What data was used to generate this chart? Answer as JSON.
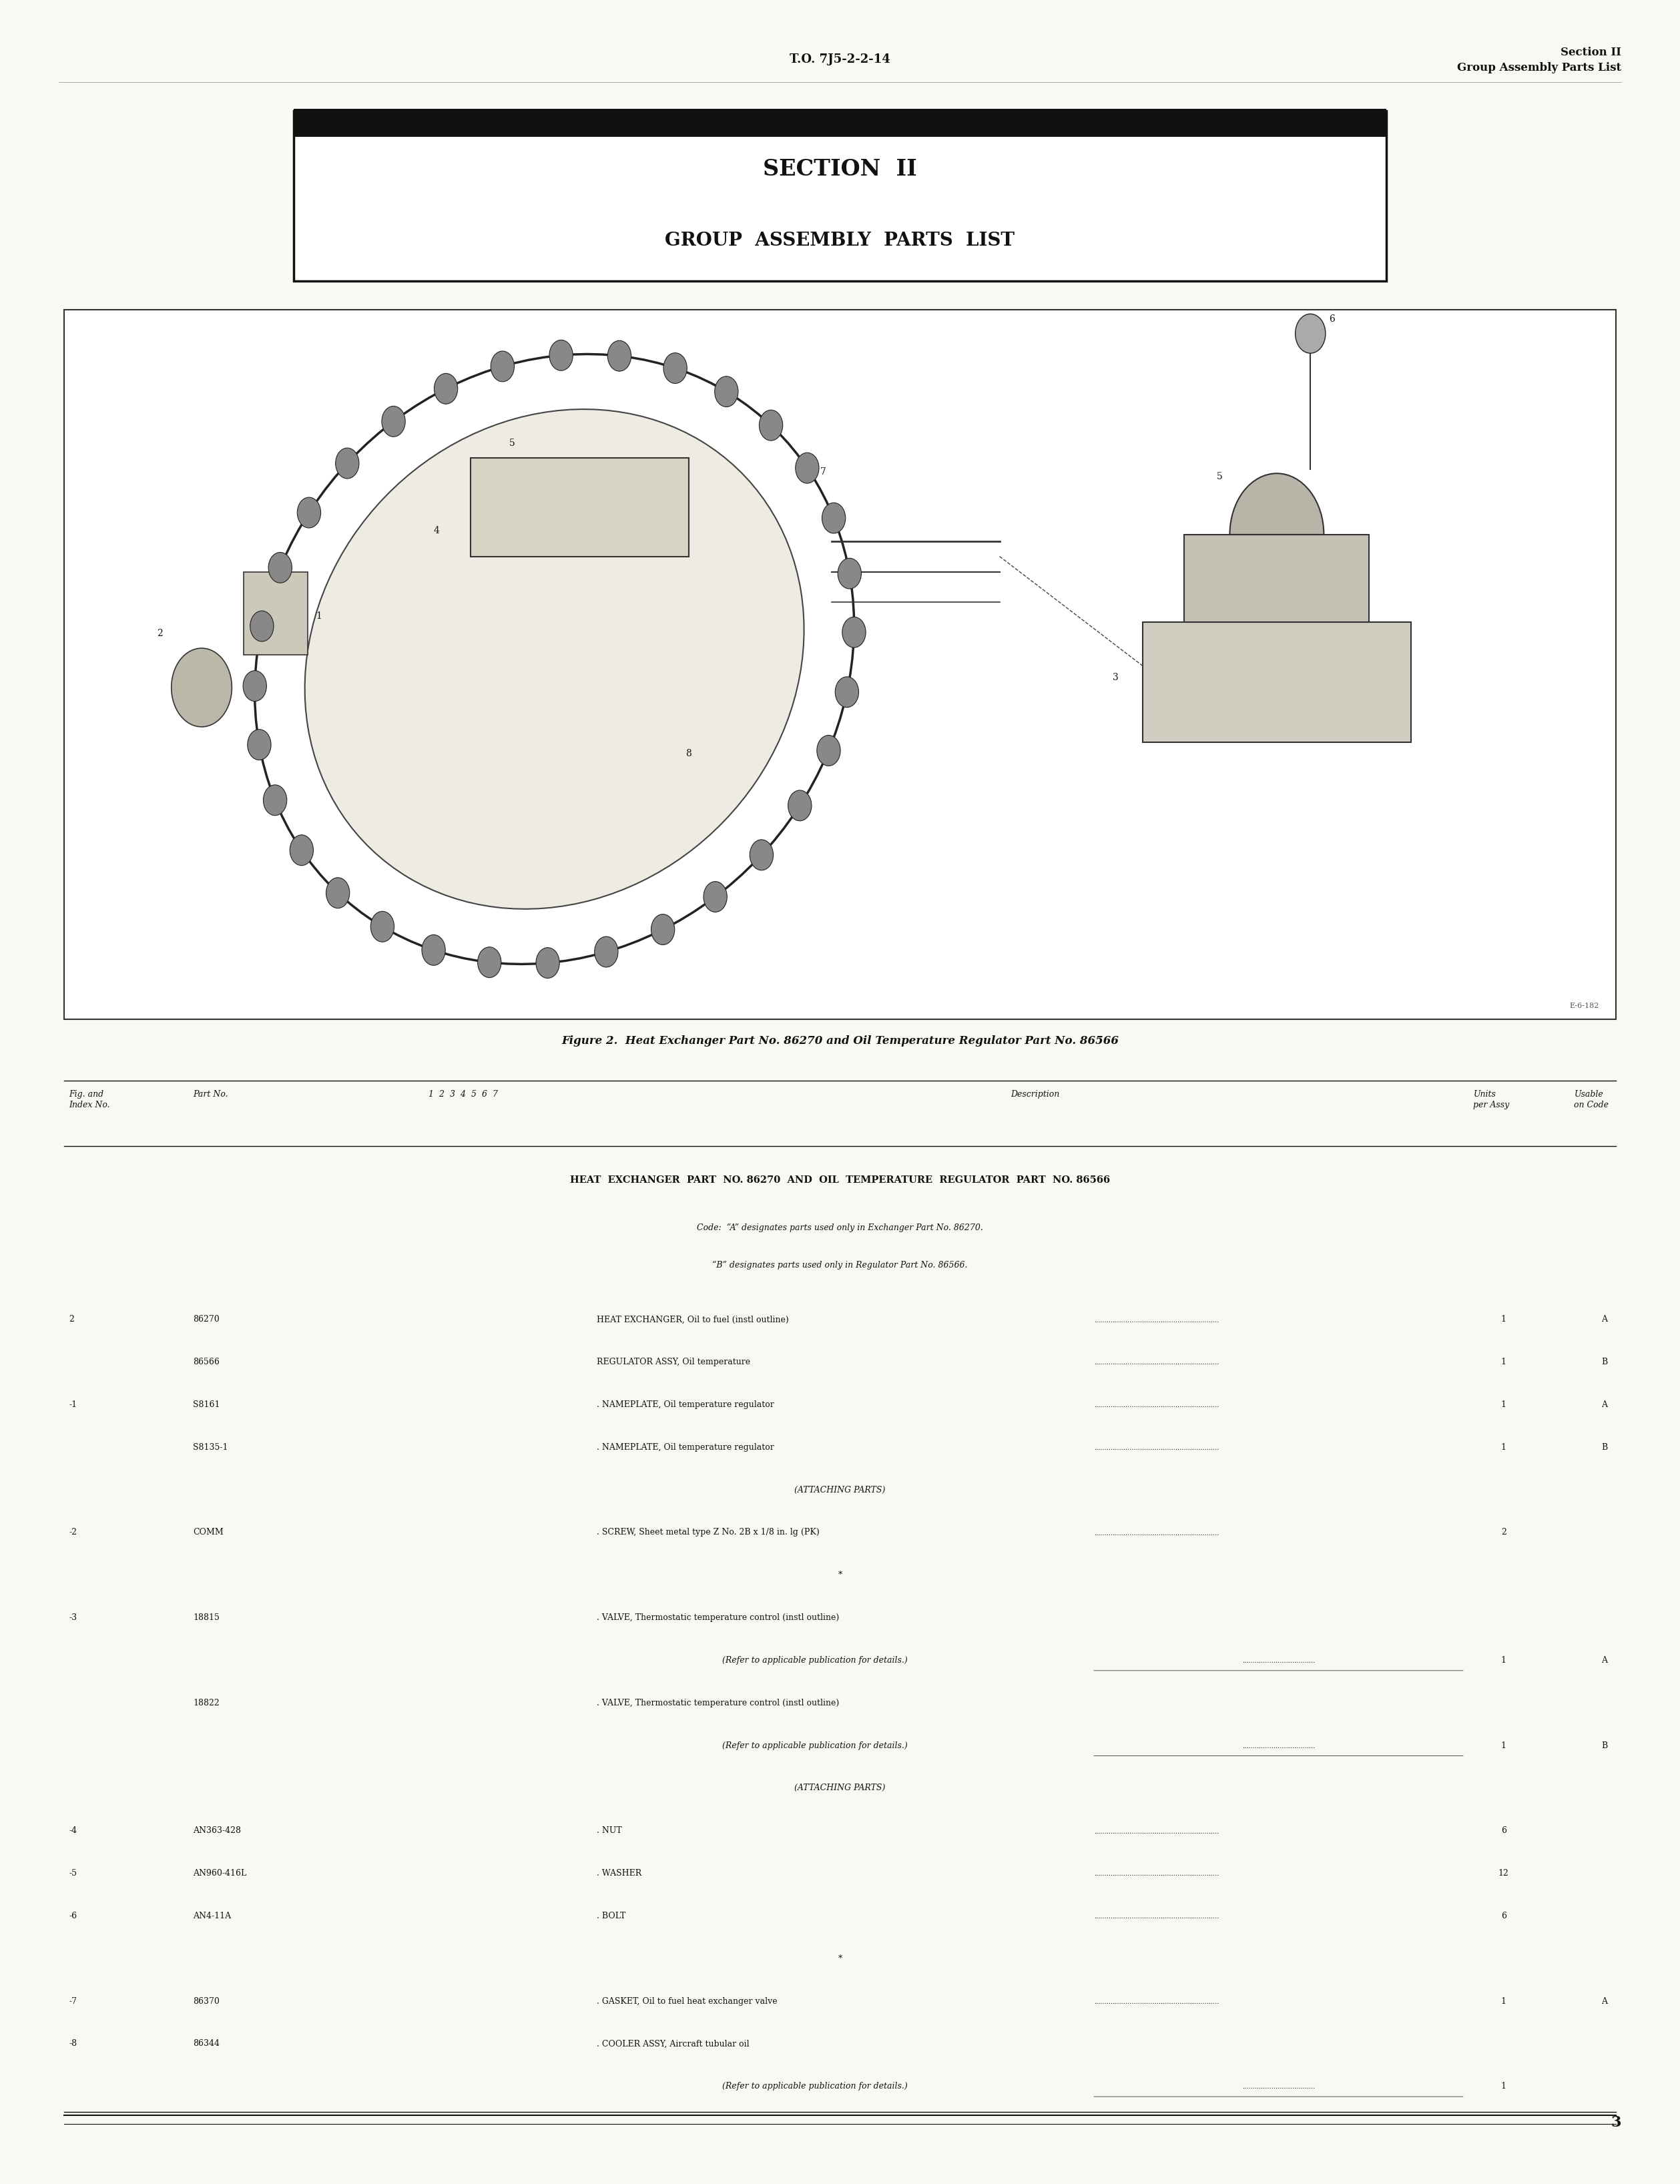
{
  "page_bg": "#faf8f2",
  "header_to": "T.O. 7J5-2-2-14",
  "header_section": "Section II",
  "header_subsection": "Group Assembly Parts List",
  "section_box_title1": "SECTION  II",
  "section_box_title2": "GROUP  ASSEMBLY  PARTS  LIST",
  "figure_caption": "Figure 2.  Heat Exchanger Part No. 86270 and Oil Temperature Regulator Part No. 86566",
  "table_main_title": "HEAT  EXCHANGER  PART  NO. 86270  AND  OIL  TEMPERATURE  REGULATOR  PART  NO. 86566",
  "table_code_note1": "Code:  “A” designates parts used only in Exchanger Part No. 86270.",
  "table_code_note2": "“B” designates parts used only in Regulator Part No. 86566.",
  "table_rows": [
    {
      "index": "2",
      "part": "86270",
      "description": "HEAT EXCHANGER, Oil to fuel (instl outline)",
      "dots": true,
      "units": "1",
      "code": "A",
      "indent": 0,
      "italic": false
    },
    {
      "index": "",
      "part": "86566",
      "description": "REGULATOR ASSY, Oil temperature",
      "dots": true,
      "units": "1",
      "code": "B",
      "indent": 0,
      "italic": false
    },
    {
      "index": "-1",
      "part": "S8161",
      "description": ". NAMEPLATE, Oil temperature regulator",
      "dots": true,
      "units": "1",
      "code": "A",
      "indent": 0,
      "italic": false
    },
    {
      "index": "",
      "part": "S8135-1",
      "description": ". NAMEPLATE, Oil temperature regulator",
      "dots": true,
      "units": "1",
      "code": "B",
      "indent": 0,
      "italic": false
    },
    {
      "index": "",
      "part": "",
      "description": "(ATTACHING PARTS)",
      "dots": false,
      "units": "",
      "code": "",
      "indent": 1,
      "italic": false
    },
    {
      "index": "-2",
      "part": "COMM",
      "description": ". SCREW, Sheet metal type Z No. 2B x 1/8 in. lg (PK)",
      "dots": true,
      "units": "2",
      "code": "",
      "indent": 0,
      "italic": false
    },
    {
      "index": "",
      "part": "",
      "description": "*",
      "dots": false,
      "units": "",
      "code": "",
      "indent": 1,
      "italic": false
    },
    {
      "index": "-3",
      "part": "18815",
      "description": ". VALVE, Thermostatic temperature control (instl outline)",
      "dots": false,
      "units": "",
      "code": "",
      "indent": 0,
      "italic": false
    },
    {
      "index": "",
      "part": "",
      "description": "(Refer to applicable publication for details.)",
      "dots": true,
      "units": "1",
      "code": "A",
      "indent": 2,
      "italic": true
    },
    {
      "index": "",
      "part": "18822",
      "description": ". VALVE, Thermostatic temperature control (instl outline)",
      "dots": false,
      "units": "",
      "code": "",
      "indent": 0,
      "italic": false
    },
    {
      "index": "",
      "part": "",
      "description": "(Refer to applicable publication for details.)",
      "dots": true,
      "units": "1",
      "code": "B",
      "indent": 2,
      "italic": true
    },
    {
      "index": "",
      "part": "",
      "description": "(ATTACHING PARTS)",
      "dots": false,
      "units": "",
      "code": "",
      "indent": 1,
      "italic": false
    },
    {
      "index": "-4",
      "part": "AN363-428",
      "description": ". NUT",
      "dots": true,
      "units": "6",
      "code": "",
      "indent": 0,
      "italic": false
    },
    {
      "index": "-5",
      "part": "AN960-416L",
      "description": ". WASHER",
      "dots": true,
      "units": "12",
      "code": "",
      "indent": 0,
      "italic": false
    },
    {
      "index": "-6",
      "part": "AN4-11A",
      "description": ". BOLT",
      "dots": true,
      "units": "6",
      "code": "",
      "indent": 0,
      "italic": false
    },
    {
      "index": "",
      "part": "",
      "description": "*",
      "dots": false,
      "units": "",
      "code": "",
      "indent": 1,
      "italic": false
    },
    {
      "index": "-7",
      "part": "86370",
      "description": ". GASKET, Oil to fuel heat exchanger valve",
      "dots": true,
      "units": "1",
      "code": "A",
      "indent": 0,
      "italic": false
    },
    {
      "index": "-8",
      "part": "86344",
      "description": ". COOLER ASSY, Aircraft tubular oil",
      "dots": false,
      "units": "",
      "code": "",
      "indent": 0,
      "italic": false
    },
    {
      "index": "",
      "part": "",
      "description": "(Refer to applicable publication for details.)",
      "dots": true,
      "units": "1",
      "code": "",
      "indent": 2,
      "italic": true
    }
  ],
  "page_number": "3"
}
